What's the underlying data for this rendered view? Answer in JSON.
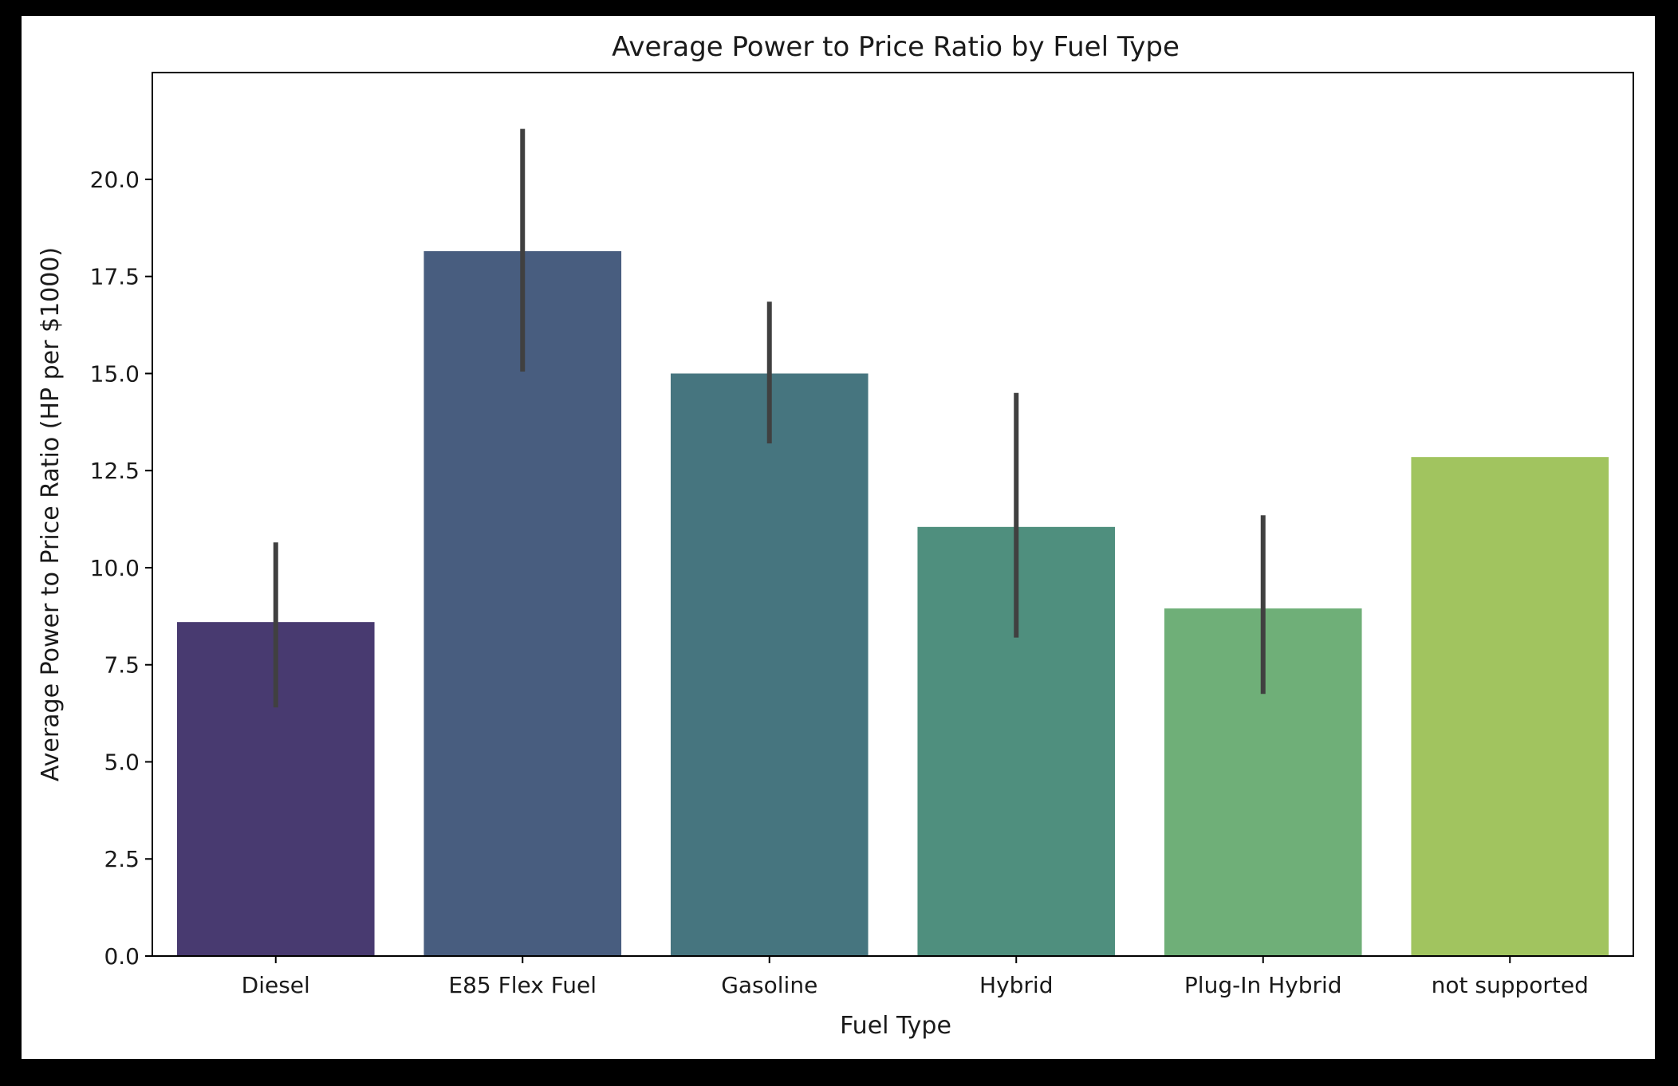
{
  "chart_data": {
    "type": "bar",
    "title": "Average Power to Price Ratio by Fuel Type",
    "xlabel": "Fuel Type",
    "ylabel": "Average Power to Price Ratio (HP per $1000)",
    "ylim": [
      0,
      22.75
    ],
    "yticks": [
      "0.0",
      "2.5",
      "5.0",
      "7.5",
      "10.0",
      "12.5",
      "15.0",
      "17.5",
      "20.0"
    ],
    "grid": false,
    "categories": [
      "Diesel",
      "E85 Flex Fuel",
      "Gasoline",
      "Hybrid",
      "Plug-In Hybrid",
      "not supported"
    ],
    "values": [
      8.6,
      18.15,
      15.0,
      11.05,
      8.95,
      12.85
    ],
    "error_low": [
      6.4,
      15.05,
      13.2,
      8.2,
      6.75,
      null
    ],
    "error_high": [
      10.65,
      21.3,
      16.85,
      14.5,
      11.35,
      null
    ],
    "colors": [
      "#483a70",
      "#485d7f",
      "#46757f",
      "#4f8f7e",
      "#6faf78",
      "#a1c45f"
    ],
    "error_bar_color": "#404040"
  }
}
